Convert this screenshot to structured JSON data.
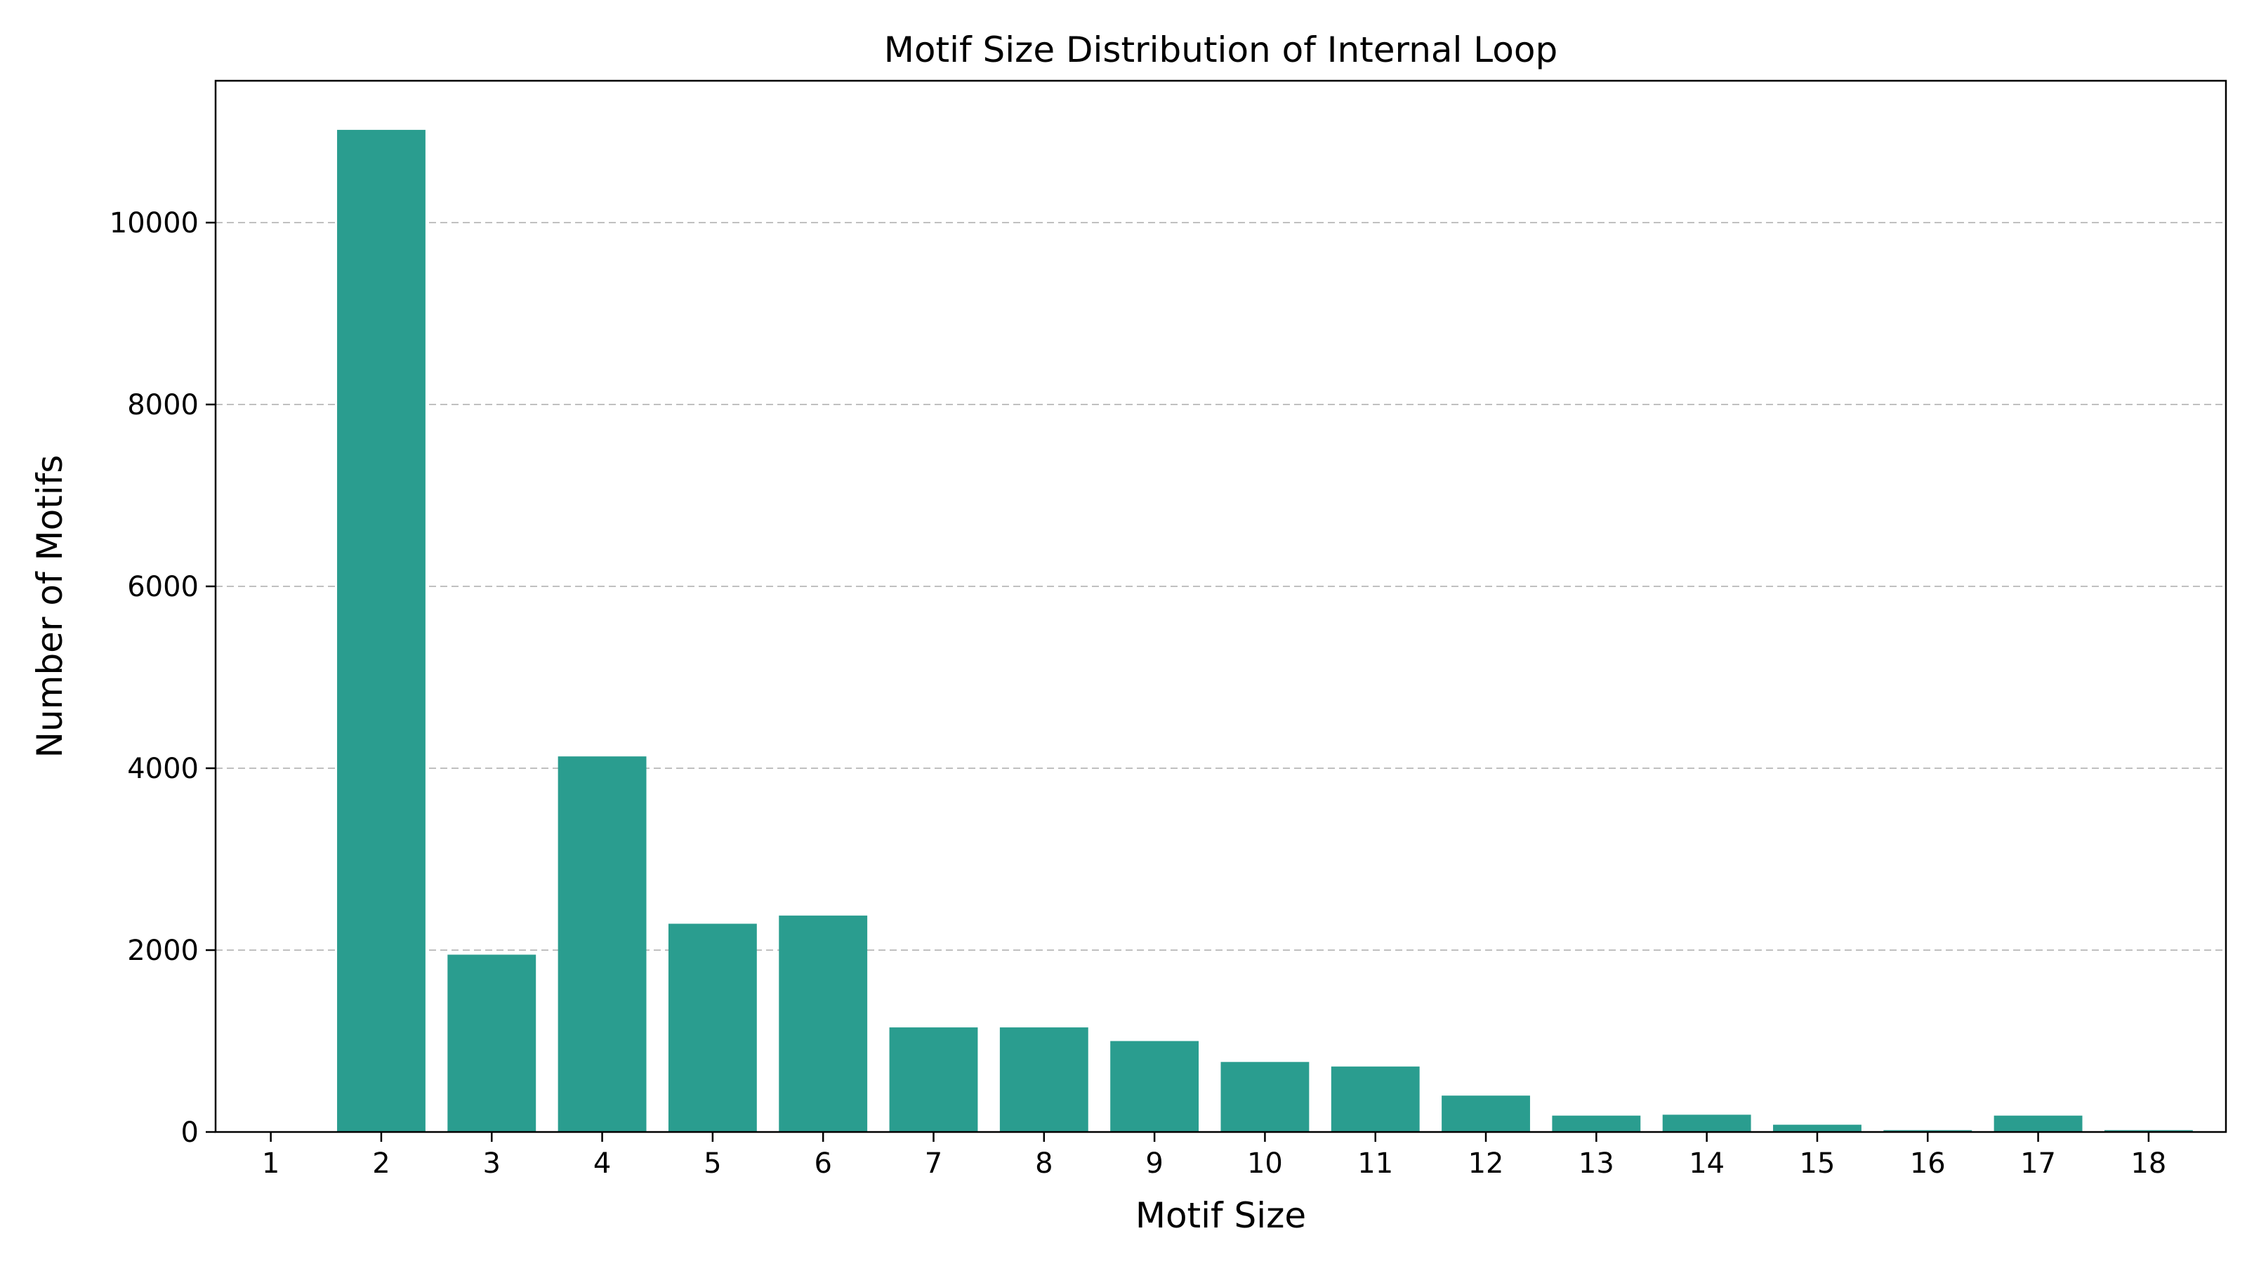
{
  "chart_data": {
    "type": "bar",
    "title": "Motif Size Distribution of Internal Loop",
    "xlabel": "Motif Size",
    "ylabel": "Number of Motifs",
    "categories": [
      "1",
      "2",
      "3",
      "4",
      "5",
      "6",
      "7",
      "8",
      "9",
      "10",
      "11",
      "12",
      "13",
      "14",
      "15",
      "16",
      "17",
      "18"
    ],
    "values": [
      0,
      11020,
      1950,
      4130,
      2290,
      2380,
      1150,
      1150,
      1000,
      770,
      720,
      400,
      180,
      190,
      80,
      20,
      180,
      20
    ],
    "yticks": [
      "0",
      "2000",
      "4000",
      "6000",
      "8000",
      "10000"
    ],
    "ytick_values": [
      0,
      2000,
      4000,
      6000,
      8000,
      10000
    ],
    "ylim": [
      0,
      11560
    ],
    "xlim": [
      -0.5,
      17.7
    ],
    "grid": "y dashed",
    "bar_color": "#2a9d8f",
    "grid_color": "#c0c0c0"
  }
}
